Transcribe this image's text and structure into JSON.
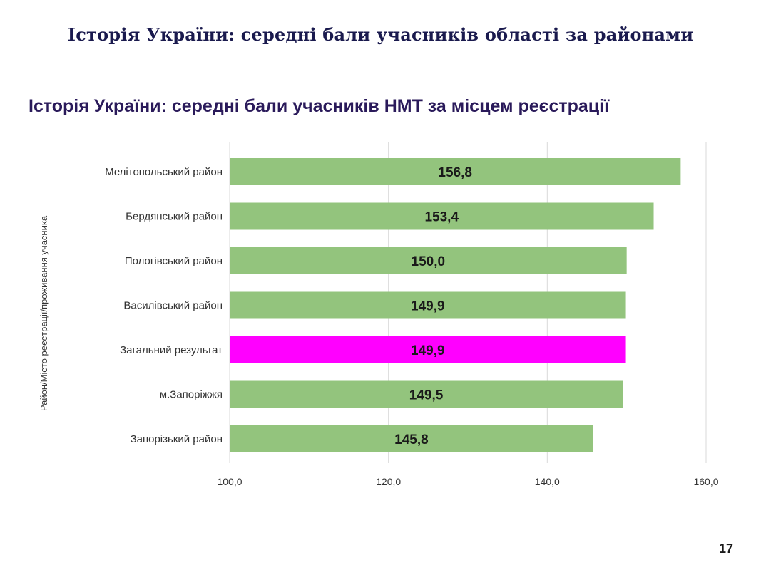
{
  "slide": {
    "title": "Історія України: середні бали учасників області за районами",
    "page_number": "17"
  },
  "chart_data": {
    "type": "bar",
    "orientation": "horizontal",
    "title": "Історія України: середні бали учасників НМТ за місцем реєстрації",
    "ylabel": "Район/Місто реєстрації/проживання учасника",
    "xlabel": "",
    "categories": [
      "Мелітопольський район",
      "Бердянський район",
      "Пологівський район",
      "Василівський район",
      "Загальний результат",
      "м.Запоріжжя",
      "Запорізький район"
    ],
    "values": [
      156.8,
      153.4,
      150.0,
      149.9,
      149.9,
      149.5,
      145.8
    ],
    "value_labels": [
      "156,8",
      "153,4",
      "150,0",
      "149,9",
      "149,9",
      "149,5",
      "145,8"
    ],
    "highlight_index": 4,
    "colors": {
      "bar": "#93c47d",
      "highlight": "#ff00ff",
      "grid": "#d9d9d9"
    },
    "xlim": [
      100,
      160
    ],
    "ticks": [
      100,
      120,
      140,
      160
    ],
    "tick_labels": [
      "100,0",
      "120,0",
      "140,0",
      "160,0"
    ],
    "grid": true
  }
}
